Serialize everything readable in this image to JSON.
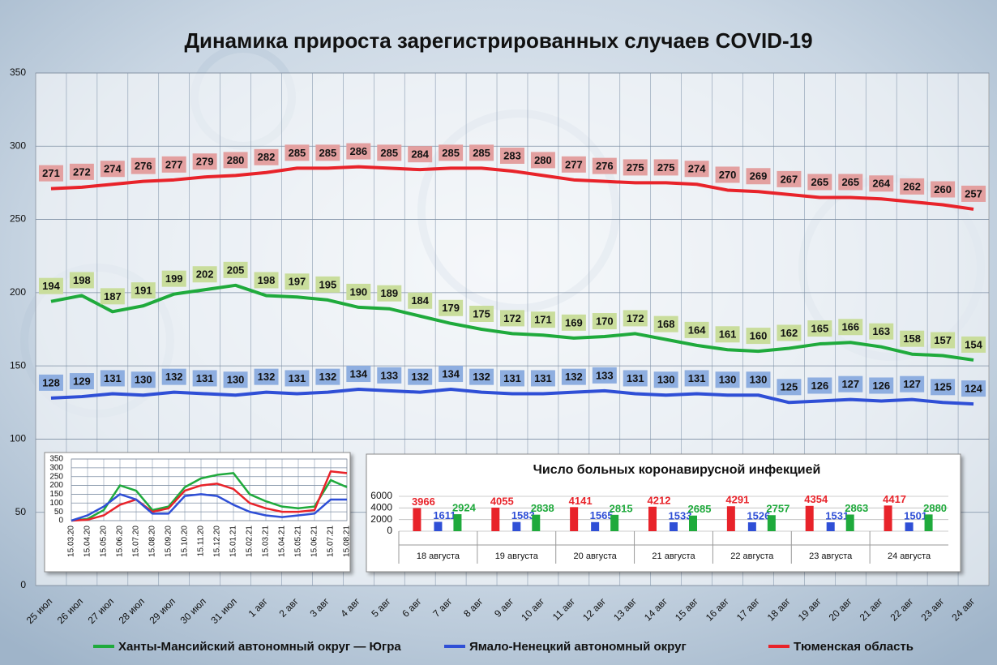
{
  "chart_data": [
    {
      "type": "line",
      "title": "Динамика прироста зарегистрированных случаев COVID-19",
      "categories": [
        "25 июл",
        "26 июл",
        "27 июл",
        "28 июл",
        "29 июл",
        "30 июл",
        "31 июл",
        "1 авг",
        "2 авг",
        "3 авг",
        "4 авг",
        "5 авг",
        "6 авг",
        "7 авг",
        "8 авг",
        "9 авг",
        "10 авг",
        "11 авг",
        "12 авг",
        "13 авг",
        "14 авг",
        "15 авг",
        "16 авг",
        "17 авг",
        "18 авг",
        "19 авг",
        "20 авг",
        "21 авг",
        "22 авг",
        "23 авг",
        "24 авг"
      ],
      "series": [
        {
          "name": "Ханты-Мансийский автономный округ — Югра",
          "color": "#1faa3c",
          "label_color": "#c9dd9c",
          "values": [
            194,
            198,
            187,
            191,
            199,
            202,
            205,
            198,
            197,
            195,
            190,
            189,
            184,
            179,
            175,
            172,
            171,
            169,
            170,
            172,
            168,
            164,
            161,
            160,
            162,
            165,
            166,
            163,
            158,
            157,
            154
          ]
        },
        {
          "name": "Ямало-Ненецкий автономный округ",
          "color": "#2f4fd6",
          "label_color": "#8eaee0",
          "values": [
            128,
            129,
            131,
            130,
            132,
            131,
            130,
            132,
            131,
            132,
            134,
            133,
            132,
            134,
            132,
            131,
            131,
            132,
            133,
            131,
            130,
            131,
            130,
            130,
            125,
            126,
            127,
            126,
            127,
            125,
            124
          ]
        },
        {
          "name": "Тюменская область",
          "color": "#e8232a",
          "label_color": "#e3a0a0",
          "values": [
            271,
            272,
            274,
            276,
            277,
            279,
            280,
            282,
            285,
            285,
            286,
            285,
            284,
            285,
            285,
            283,
            280,
            277,
            276,
            275,
            275,
            274,
            270,
            269,
            267,
            265,
            265,
            264,
            262,
            260,
            257
          ]
        }
      ],
      "ylim": [
        0,
        350
      ],
      "yticks": [
        0,
        50,
        100,
        150,
        200,
        250,
        300,
        350
      ],
      "grid": true
    },
    {
      "type": "line",
      "categories": [
        "15.03.20",
        "15.04.20",
        "15.05.20",
        "15.06.20",
        "15.07.20",
        "15.08.20",
        "15.09.20",
        "15.10.20",
        "15.11.20",
        "15.12.20",
        "15.01.21",
        "15.02.21",
        "15.03.21",
        "15.04.21",
        "15.05.21",
        "15.06.21",
        "15.07.21",
        "15.08.21"
      ],
      "series": [
        {
          "color": "#1faa3c",
          "values": [
            0,
            10,
            60,
            200,
            170,
            60,
            80,
            190,
            240,
            260,
            270,
            150,
            110,
            80,
            70,
            80,
            230,
            190
          ]
        },
        {
          "color": "#e8232a",
          "values": [
            0,
            5,
            30,
            90,
            120,
            50,
            70,
            170,
            200,
            210,
            180,
            100,
            70,
            50,
            50,
            60,
            280,
            270
          ]
        },
        {
          "color": "#2f4fd6",
          "values": [
            0,
            30,
            80,
            150,
            120,
            40,
            40,
            140,
            150,
            140,
            90,
            50,
            30,
            20,
            30,
            40,
            120,
            120
          ]
        }
      ],
      "ylim": [
        0,
        350
      ],
      "yticks": [
        0,
        50,
        100,
        150,
        200,
        250,
        300,
        350
      ],
      "grid": true
    },
    {
      "type": "bar",
      "title": "Число больных  коронавирусной  инфекцией",
      "categories": [
        "18 августа",
        "19 августа",
        "20 августа",
        "21 августа",
        "22 августа",
        "23 августа",
        "24 августа"
      ],
      "series": [
        {
          "color": "#e8232a",
          "values": [
            3966,
            4055,
            4141,
            4212,
            4291,
            4354,
            4417
          ]
        },
        {
          "color": "#2f4fd6",
          "values": [
            1611,
            1583,
            1565,
            1533,
            1526,
            1531,
            1501
          ]
        },
        {
          "color": "#1faa3c",
          "values": [
            2924,
            2838,
            2815,
            2685,
            2757,
            2863,
            2880
          ]
        }
      ],
      "ylim": [
        0,
        6000
      ],
      "yticks": [
        0,
        2000,
        4000,
        6000
      ],
      "grid": true
    }
  ]
}
